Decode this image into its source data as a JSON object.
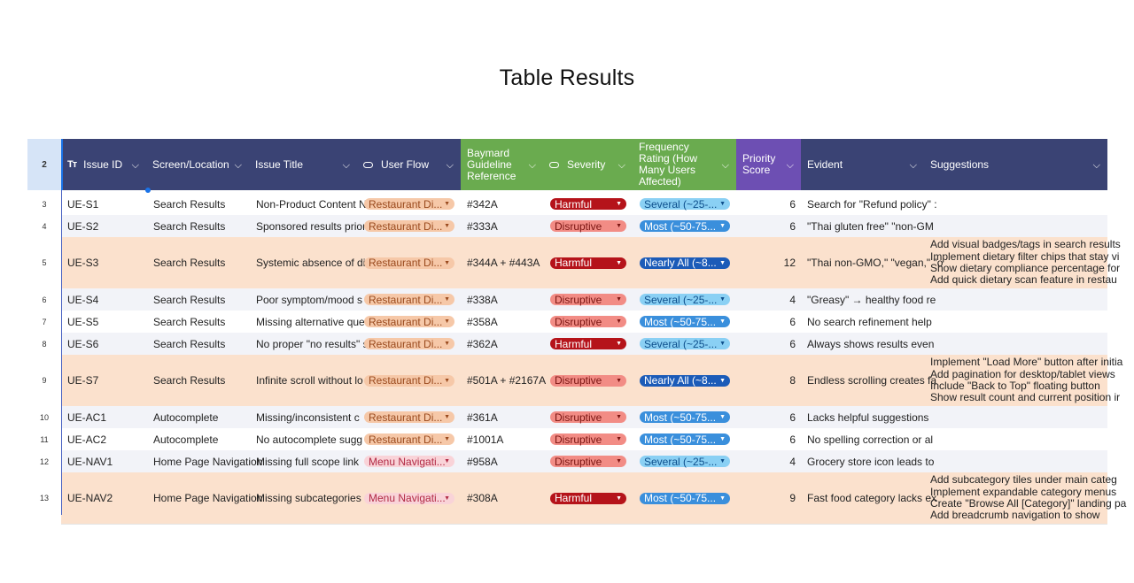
{
  "page": {
    "title": "Table Results"
  },
  "header": {
    "row_number": "2",
    "columns": [
      {
        "label": "Issue ID",
        "icon": "text-type-icon"
      },
      {
        "label": "Screen/Location"
      },
      {
        "label": "Issue Title"
      },
      {
        "label": "User Flow",
        "icon": "select-pill-icon"
      },
      {
        "label": "Baymard Guideline Reference"
      },
      {
        "label": "Severity",
        "icon": "select-pill-icon"
      },
      {
        "label": "Frequency Rating (How Many Users Affected)"
      },
      {
        "label": "Priority Score"
      },
      {
        "label": "Evident"
      },
      {
        "label": "Suggestions"
      }
    ]
  },
  "colors": {
    "navy": "#3a4374",
    "green": "#6aab4f",
    "purple": "#6d4fb3",
    "highlight_row": "#fbe1cd",
    "alt_row": "#f2f3f8"
  },
  "rows": [
    {
      "num": "3",
      "id": "UE-S1",
      "screen": "Search Results",
      "title": "Non-Product Content N",
      "flow": "Restaurant Di...",
      "guideline": "#342A",
      "severity": "Harmful",
      "frequency": "Several (~25-...",
      "priority": "6",
      "evident": "Search for \"Refund policy\" :",
      "suggestions": []
    },
    {
      "num": "4",
      "id": "UE-S2",
      "screen": "Search Results",
      "title": "Sponsored results prior",
      "flow": "Restaurant Di...",
      "guideline": "#333A",
      "severity": "Disruptive",
      "frequency": "Most (~50-75...",
      "priority": "6",
      "evident": "\"Thai gluten free\"  \"non-GM",
      "suggestions": []
    },
    {
      "num": "5",
      "id": "UE-S3",
      "screen": "Search Results",
      "title": "Systemic absence of di",
      "flow": "Restaurant Di...",
      "guideline": "#344A + #443A",
      "severity": "Harmful",
      "frequency": "Nearly All (~8...",
      "priority": "12",
      "evident": "\"Thai non-GMO,\" \"vegan,\" \"o",
      "suggestions": [
        "Add visual badges/tags in search results",
        "Implement dietary filter chips that stay vi",
        "Show dietary compliance percentage for",
        "Add quick dietary scan feature in restau"
      ]
    },
    {
      "num": "6",
      "id": "UE-S4",
      "screen": "Search Results",
      "title": "Poor symptom/mood s",
      "flow": "Restaurant Di...",
      "guideline": "#338A",
      "severity": "Disruptive",
      "frequency": "Several (~25-...",
      "priority": "4",
      "evident": "\"Greasy\" → healthy food re",
      "suggestions": []
    },
    {
      "num": "7",
      "id": "UE-S5",
      "screen": "Search Results",
      "title": "Missing alternative que",
      "flow": "Restaurant Di...",
      "guideline": "#358A",
      "severity": "Disruptive",
      "frequency": "Most (~50-75...",
      "priority": "6",
      "evident": "No search refinement help",
      "suggestions": []
    },
    {
      "num": "8",
      "id": "UE-S6",
      "screen": "Search Results",
      "title": "No proper \"no results\" s",
      "flow": "Restaurant Di...",
      "guideline": "#362A",
      "severity": "Harmful",
      "frequency": "Several (~25-...",
      "priority": "6",
      "evident": "Always shows results even",
      "suggestions": []
    },
    {
      "num": "9",
      "id": "UE-S7",
      "screen": "Search Results",
      "title": "Infinite scroll without lo",
      "flow": "Restaurant Di...",
      "guideline": "#501A + #2167A",
      "severity": "Disruptive",
      "frequency": "Nearly All (~8...",
      "priority": "8",
      "evident": "Endless scrolling creates fa",
      "suggestions": [
        "Implement \"Load More\" button after initia",
        "Add pagination for desktop/tablet views",
        "Include \"Back to Top\" floating button",
        "Show result count and current position ir"
      ]
    },
    {
      "num": "10",
      "id": "UE-AC1",
      "screen": "Autocomplete",
      "title": "Missing/inconsistent c",
      "flow": "Restaurant Di...",
      "guideline": "#361A",
      "severity": "Disruptive",
      "frequency": "Most (~50-75...",
      "priority": "6",
      "evident": "Lacks helpful suggestions",
      "suggestions": []
    },
    {
      "num": "11",
      "id": "UE-AC2",
      "screen": "Autocomplete",
      "title": "No autocomplete sugg",
      "flow": "Restaurant Di...",
      "guideline": "#1001A",
      "severity": "Disruptive",
      "frequency": "Most (~50-75...",
      "priority": "6",
      "evident": "No spelling correction or al",
      "suggestions": []
    },
    {
      "num": "12",
      "id": "UE-NAV1",
      "screen": "Home Page Navigation",
      "title": "Missing full scope link",
      "flow": "Menu Navigati...",
      "guideline": "#958A",
      "severity": "Disruptive",
      "frequency": "Several (~25-...",
      "priority": "4",
      "evident": "Grocery store icon leads to",
      "suggestions": []
    },
    {
      "num": "13",
      "id": "UE-NAV2",
      "screen": "Home Page Navigation",
      "title": "Missing subcategories",
      "flow": "Menu Navigati...",
      "guideline": "#308A",
      "severity": "Harmful",
      "frequency": "Most (~50-75...",
      "priority": "9",
      "evident": "Fast food category lacks ex",
      "suggestions": [
        "Add subcategory tiles under main categ",
        "Implement expandable category menus",
        "Create \"Browse All [Category]\" landing pa",
        "Add breadcrumb navigation to show"
      ]
    }
  ]
}
